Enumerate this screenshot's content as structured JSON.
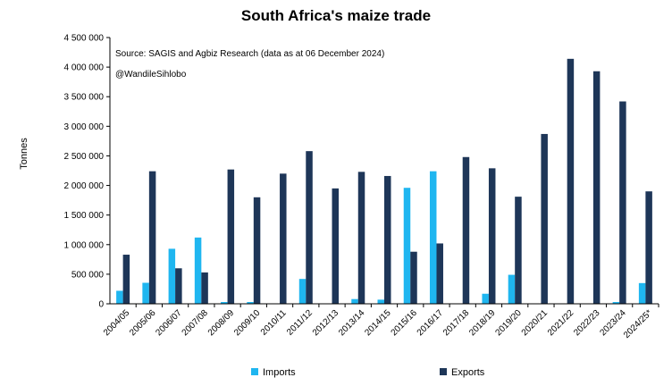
{
  "chart_data": {
    "type": "bar",
    "title": "South Africa's maize trade",
    "source_note": "Source: SAGIS and Agbiz Research (data as at  06 December 2024)",
    "handle_note": "@WandileSihlobo",
    "xlabel": "",
    "ylabel": "Tonnes",
    "ylim": [
      0,
      4500000
    ],
    "y_ticks": [
      0,
      500000,
      1000000,
      1500000,
      2000000,
      2500000,
      3000000,
      3500000,
      4000000,
      4500000
    ],
    "y_tick_labels": [
      "0",
      "500 000",
      "1 000 000",
      "1 500 000",
      "2 000 000",
      "2 500 000",
      "3 000 000",
      "3 500 000",
      "4 000 000",
      "4 500 000"
    ],
    "grid": false,
    "legend_position": "bottom",
    "categories": [
      "2004/05",
      "2005/06",
      "2006/07",
      "2007/08",
      "2008/09",
      "2009/10",
      "2010/11",
      "2011/12",
      "2012/13",
      "2013/14",
      "2014/15",
      "2015/16",
      "2016/17",
      "2017/18",
      "2018/19",
      "2019/20",
      "2020/21",
      "2021/22",
      "2022/23",
      "2023/24",
      "2024/25*"
    ],
    "series": [
      {
        "name": "Imports",
        "color": "#1fb6f0",
        "values": [
          220000,
          355000,
          930000,
          1120000,
          30000,
          30000,
          0,
          420000,
          0,
          80000,
          70000,
          1960000,
          2240000,
          0,
          170000,
          490000,
          0,
          0,
          0,
          30000,
          350000
        ]
      },
      {
        "name": "Exports",
        "color": "#1e3658",
        "values": [
          830000,
          2240000,
          600000,
          530000,
          2270000,
          1800000,
          2200000,
          2580000,
          1950000,
          2230000,
          2160000,
          880000,
          1020000,
          2480000,
          2290000,
          1810000,
          2870000,
          4140000,
          3930000,
          3420000,
          1900000
        ]
      }
    ]
  }
}
